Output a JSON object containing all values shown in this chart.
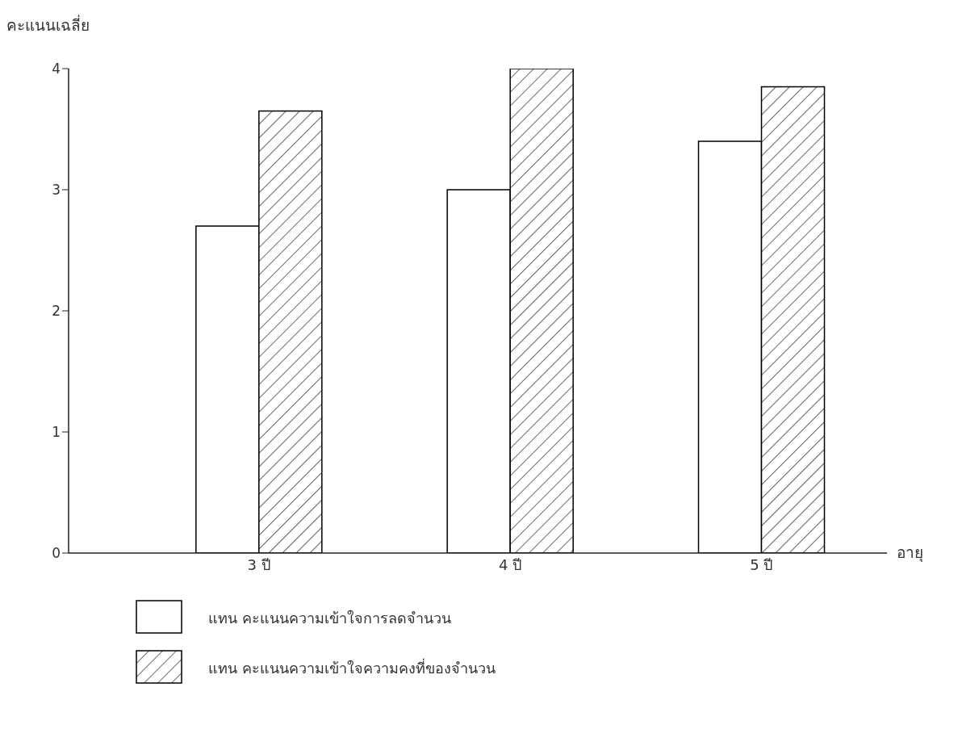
{
  "chart_data": {
    "type": "bar",
    "ylabel": "คะแนนเฉลี่ย",
    "xlabel": "อายุ",
    "categories": [
      "3 ปี",
      "4 ปี",
      "5 ปี"
    ],
    "series": [
      {
        "name": "แทน  คะแนนความเข้าใจการลดจำนวน",
        "color": "#ffffff",
        "values": [
          2.7,
          3.0,
          3.4
        ]
      },
      {
        "name": "แทน  คะแนนความเข้าใจความคงที่ของจำนวน",
        "color": "#000000",
        "values": [
          3.65,
          4.0,
          3.85
        ]
      }
    ],
    "ylim": [
      0,
      4
    ],
    "yticks": [
      0,
      1,
      2,
      3,
      4
    ],
    "grid": false,
    "legend": "bottom"
  }
}
